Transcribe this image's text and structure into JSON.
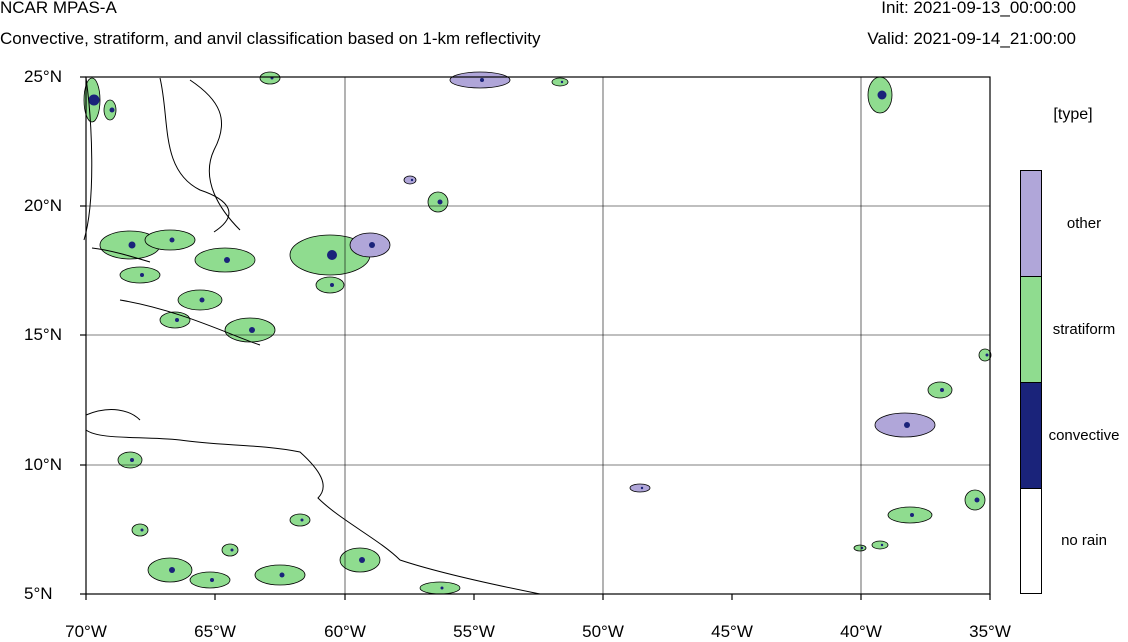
{
  "header": {
    "title": "NCAR MPAS-A",
    "subtitle": "Convective, stratiform, and anvil classification based on 1-km reflectivity",
    "init": "Init: 2021-09-13_00:00:00",
    "valid": "Valid: 2021-09-14_21:00:00"
  },
  "axes": {
    "y_ticks": [
      "25°N",
      "20°N",
      "15°N",
      "10°N",
      "5°N"
    ],
    "x_ticks": [
      "70°W",
      "65°W",
      "60°W",
      "55°W",
      "50°W",
      "45°W",
      "40°W",
      "35°W"
    ]
  },
  "map": {
    "lon_range": [
      -70,
      -35
    ],
    "lat_range": [
      5,
      25
    ],
    "grid": true,
    "coastlines": true
  },
  "legend": {
    "title": "[type]",
    "items": [
      {
        "label": "other",
        "color": "#b0a6d9"
      },
      {
        "label": "stratiform",
        "color": "#8fdc8f"
      },
      {
        "label": "convective",
        "color": "#1a237a"
      },
      {
        "label": "no rain",
        "color": "#ffffff"
      }
    ]
  }
}
